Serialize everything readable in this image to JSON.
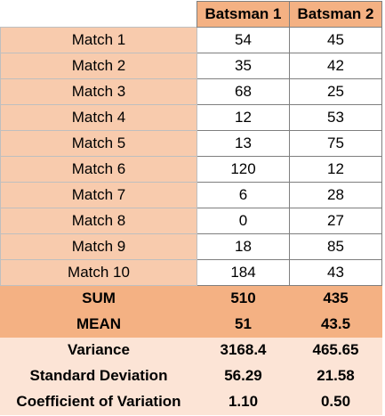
{
  "headers": {
    "batsman_1": "Batsman 1",
    "batsman_2": "Batsman 2"
  },
  "matches": [
    {
      "label": "Match 1",
      "batsman_1": "54",
      "batsman_2": "45"
    },
    {
      "label": "Match 2",
      "batsman_1": "35",
      "batsman_2": "42"
    },
    {
      "label": "Match 3",
      "batsman_1": "68",
      "batsman_2": "25"
    },
    {
      "label": "Match 4",
      "batsman_1": "12",
      "batsman_2": "53"
    },
    {
      "label": "Match 5",
      "batsman_1": "13",
      "batsman_2": "75"
    },
    {
      "label": "Match 6",
      "batsman_1": "120",
      "batsman_2": "12"
    },
    {
      "label": "Match 7",
      "batsman_1": "6",
      "batsman_2": "28"
    },
    {
      "label": "Match 8",
      "batsman_1": "0",
      "batsman_2": "27"
    },
    {
      "label": "Match 9",
      "batsman_1": "18",
      "batsman_2": "85"
    },
    {
      "label": "Match 10",
      "batsman_1": "184",
      "batsman_2": "43"
    }
  ],
  "aggregates": [
    {
      "label": "SUM",
      "batsman_1": "510",
      "batsman_2": "435"
    },
    {
      "label": "MEAN",
      "batsman_1": "51",
      "batsman_2": "43.5"
    }
  ],
  "statistics": [
    {
      "label": "Variance",
      "batsman_1": "3168.4",
      "batsman_2": "465.65"
    },
    {
      "label": "Standard Deviation",
      "batsman_1": "56.29",
      "batsman_2": "21.58"
    },
    {
      "label": "Coefficient of Variation",
      "batsman_1": "1.10",
      "batsman_2": "0.50"
    }
  ],
  "colors": {
    "header_fill": "#f4b183",
    "label_fill": "#f8cbad",
    "aggregate_fill": "#f4b183",
    "statistics_fill": "#fce4d6"
  }
}
